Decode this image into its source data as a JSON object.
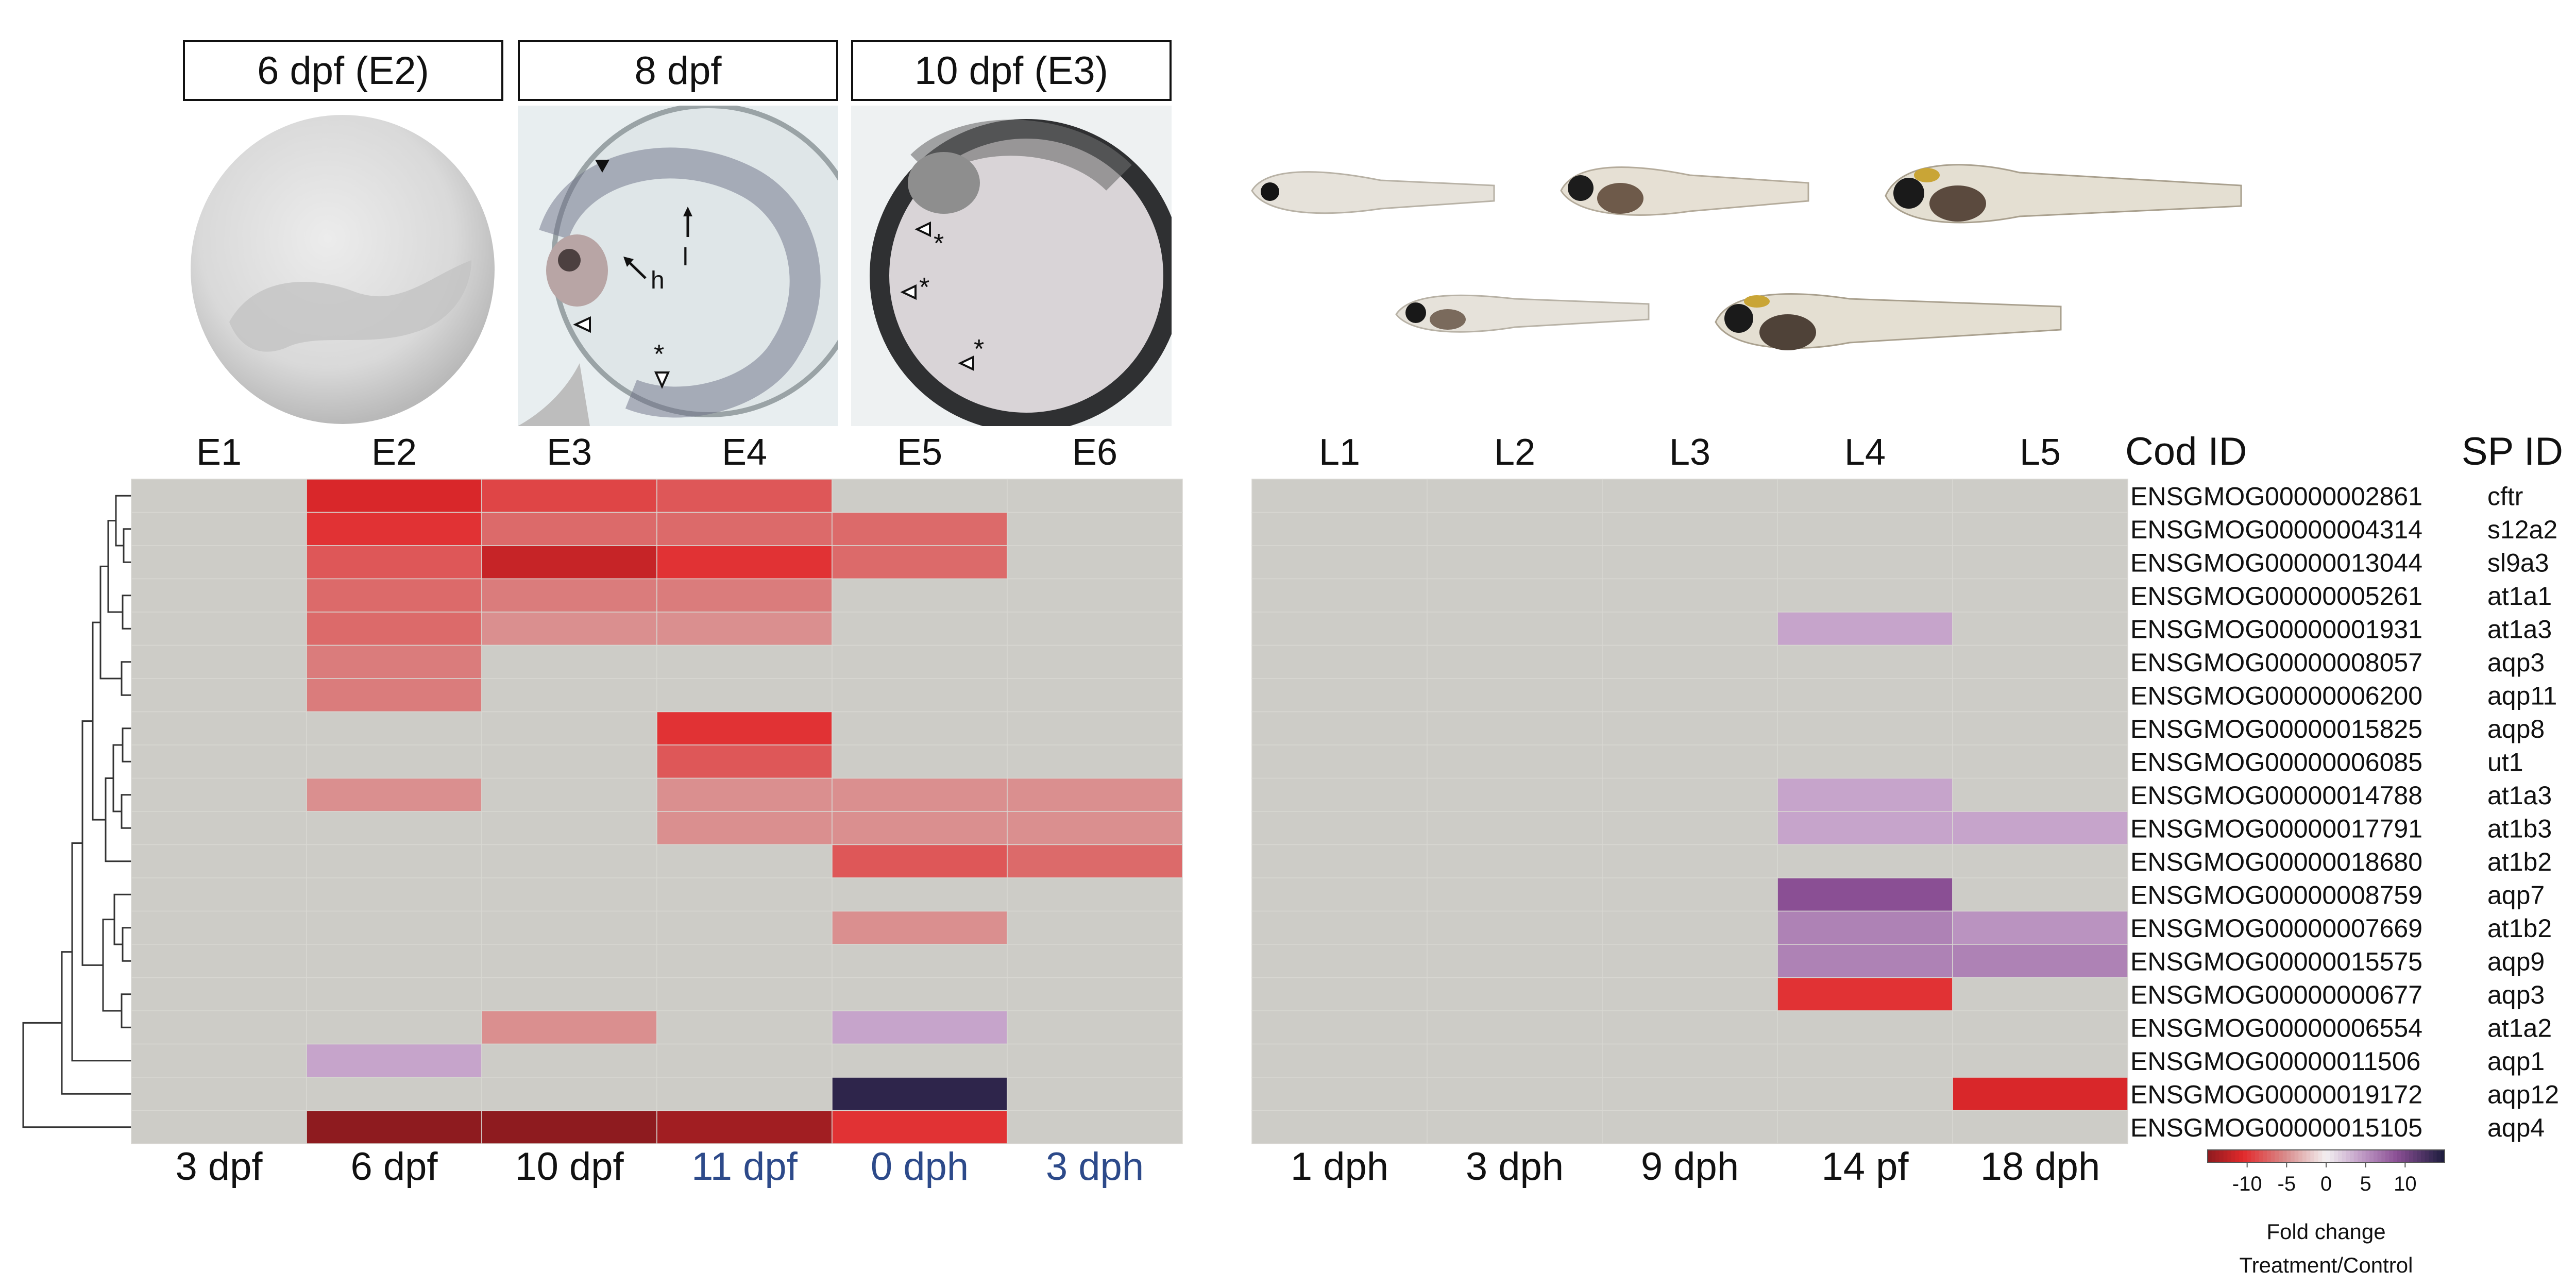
{
  "panel_titles": [
    "6 dpf (E2)",
    "8 dpf",
    "10 dpf (E3)"
  ],
  "image_annotations": [
    "h",
    "l",
    "*",
    "*",
    "*",
    "*"
  ],
  "colors": {
    "no_change": "#cdccc7",
    "neg_max": "#1b1c3c",
    "pos_max": "#e2292b",
    "grid_line": "#d8d7d2",
    "highlight_label": "#2d4a8a"
  },
  "chart_data": [
    {
      "type": "heatmap",
      "title": "",
      "column_labels": [
        "E1",
        "E2",
        "E3",
        "E4",
        "E5",
        "E6"
      ],
      "bottom_labels": [
        "3 dpf",
        "6 dpf",
        "10 dpf",
        "11 dpf",
        "0 dph",
        "3 dph"
      ],
      "highlighted_bottom_labels": [
        "11 dpf",
        "0 dph",
        "3 dph"
      ],
      "rows": [
        "ENSGMOG00000002861",
        "ENSGMOG00000004314",
        "ENSGMOG00000013044",
        "ENSGMOG00000005261",
        "ENSGMOG00000001931",
        "ENSGMOG00000008057",
        "ENSGMOG00000006200",
        "ENSGMOG00000015825",
        "ENSGMOG00000006085",
        "ENSGMOG00000014788",
        "ENSGMOG00000017791",
        "ENSGMOG00000018680",
        "ENSGMOG00000008759",
        "ENSGMOG00000007669",
        "ENSGMOG00000015575",
        "ENSGMOG00000000677",
        "ENSGMOG00000006554",
        "ENSGMOG00000011506",
        "ENSGMOG00000019172",
        "ENSGMOG00000015105"
      ],
      "values": [
        [
          0,
          -11,
          -9,
          -8,
          0,
          0
        ],
        [
          0,
          -10,
          -7,
          -7,
          -7,
          0
        ],
        [
          0,
          -8,
          -12,
          -10,
          -7,
          0
        ],
        [
          0,
          -7,
          -6,
          -6,
          0,
          0
        ],
        [
          0,
          -7,
          -5,
          -5,
          0,
          0
        ],
        [
          0,
          -6,
          0,
          0,
          0,
          0
        ],
        [
          0,
          -6,
          0,
          0,
          0,
          0
        ],
        [
          0,
          0,
          0,
          -10,
          0,
          0
        ],
        [
          0,
          0,
          0,
          -8,
          0,
          0
        ],
        [
          0,
          -5,
          0,
          -5,
          -5,
          -5
        ],
        [
          0,
          0,
          0,
          -5,
          -5,
          -5
        ],
        [
          0,
          0,
          0,
          0,
          -8,
          -7
        ],
        [
          0,
          0,
          0,
          0,
          0,
          0
        ],
        [
          0,
          0,
          0,
          0,
          -5,
          0
        ],
        [
          0,
          0,
          0,
          0,
          0,
          0
        ],
        [
          0,
          0,
          0,
          0,
          0,
          0
        ],
        [
          0,
          0,
          -5,
          0,
          4,
          0
        ],
        [
          0,
          4,
          0,
          0,
          0,
          0
        ],
        [
          0,
          0,
          0,
          0,
          14,
          0
        ],
        [
          0,
          -16,
          -15,
          -14,
          -10,
          0
        ]
      ]
    },
    {
      "type": "heatmap",
      "title": "",
      "column_labels": [
        "L1",
        "L2",
        "L3",
        "L4",
        "L5"
      ],
      "bottom_labels": [
        "1 dph",
        "3 dph",
        "9 dph",
        "14 pf",
        "18 dph"
      ],
      "row_header": "Cod ID",
      "symbol_header": "SP ID",
      "rows": [
        "ENSGMOG00000002861",
        "ENSGMOG00000004314",
        "ENSGMOG00000013044",
        "ENSGMOG00000005261",
        "ENSGMOG00000001931",
        "ENSGMOG00000008057",
        "ENSGMOG00000006200",
        "ENSGMOG00000015825",
        "ENSGMOG00000006085",
        "ENSGMOG00000014788",
        "ENSGMOG00000017791",
        "ENSGMOG00000018680",
        "ENSGMOG00000008759",
        "ENSGMOG00000007669",
        "ENSGMOG00000015575",
        "ENSGMOG00000000677",
        "ENSGMOG00000006554",
        "ENSGMOG00000011506",
        "ENSGMOG00000019172",
        "ENSGMOG00000015105"
      ],
      "symbols": [
        "cftr",
        "s12a2",
        "sl9a3",
        "at1a1",
        "at1a3",
        "aqp3",
        "aqp11",
        "aqp8",
        "ut1",
        "at1a3",
        "at1b3",
        "at1b2",
        "aqp7",
        "at1b2",
        "aqp9",
        "aqp3",
        "at1a2",
        "aqp1",
        "aqp12",
        "aqp4"
      ],
      "values": [
        [
          0,
          0,
          0,
          0,
          0
        ],
        [
          0,
          0,
          0,
          0,
          0
        ],
        [
          0,
          0,
          0,
          0,
          0
        ],
        [
          0,
          0,
          0,
          0,
          0
        ],
        [
          0,
          0,
          0,
          4,
          0
        ],
        [
          0,
          0,
          0,
          0,
          0
        ],
        [
          0,
          0,
          0,
          0,
          0
        ],
        [
          0,
          0,
          0,
          0,
          0
        ],
        [
          0,
          0,
          0,
          0,
          0
        ],
        [
          0,
          0,
          0,
          4,
          0
        ],
        [
          0,
          0,
          0,
          4,
          4
        ],
        [
          0,
          0,
          0,
          0,
          0
        ],
        [
          0,
          0,
          0,
          9,
          0
        ],
        [
          0,
          0,
          0,
          6,
          5
        ],
        [
          0,
          0,
          0,
          6,
          6
        ],
        [
          0,
          0,
          0,
          -10,
          0
        ],
        [
          0,
          0,
          0,
          0,
          0
        ],
        [
          0,
          0,
          0,
          0,
          0
        ],
        [
          0,
          0,
          0,
          0,
          -11
        ],
        [
          0,
          0,
          0,
          0,
          0
        ]
      ]
    }
  ],
  "legend": {
    "ticks": [
      -10,
      -5,
      0,
      5,
      10
    ],
    "tick_labels": [
      "-10",
      "-5",
      "0",
      "5",
      "10"
    ],
    "range": [
      -15,
      15
    ],
    "label_line1": "Fold change",
    "label_line2": "Treatment/Control"
  }
}
